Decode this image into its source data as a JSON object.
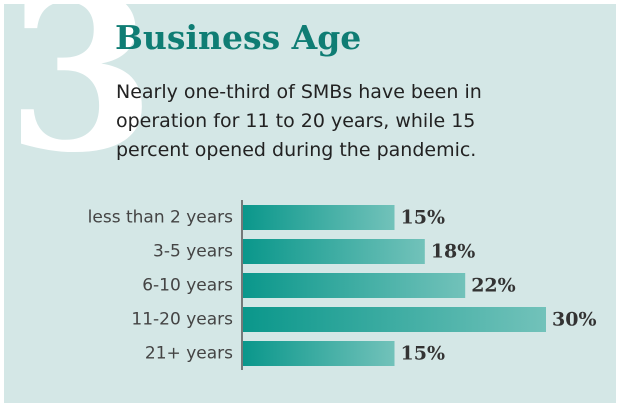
{
  "numeral": "3",
  "chart_data": {
    "type": "bar",
    "orientation": "horizontal",
    "title": "Business Age",
    "subtitle": "Nearly one-third of SMBs have been in operation for 11 to 20 years, while 15 percent opened during the pandemic.",
    "categories": [
      "less than 2 years",
      "3-5 years",
      "6-10 years",
      "11-20 years",
      "21+ years"
    ],
    "values": [
      15,
      18,
      22,
      30,
      15
    ],
    "value_labels": [
      "15%",
      "18%",
      "22%",
      "30%",
      "15%"
    ],
    "color": [
      "#0a978b",
      "#72c2ba"
    ]
  }
}
